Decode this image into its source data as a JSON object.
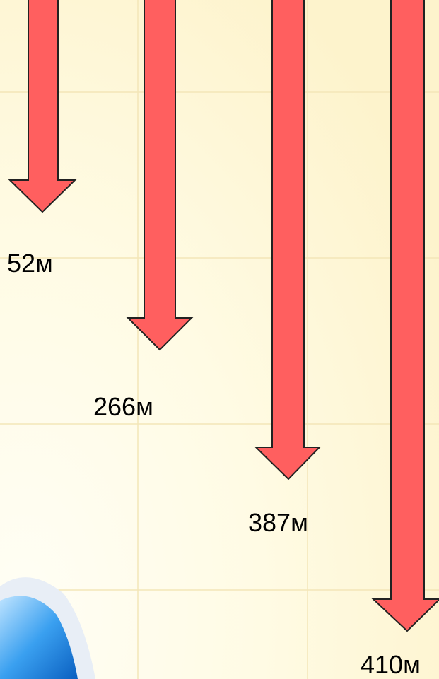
{
  "labels": [
    "52м",
    "266м",
    "387м",
    "410м"
  ]
}
